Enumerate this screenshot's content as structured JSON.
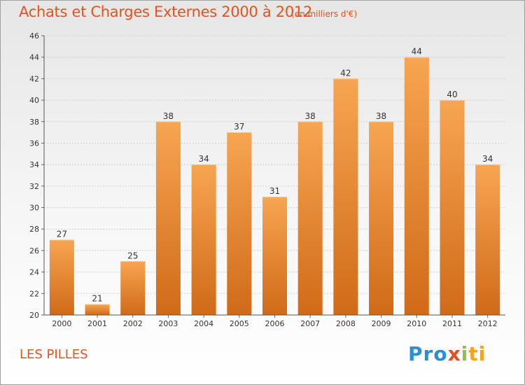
{
  "chart_data": {
    "type": "bar",
    "title": "Achats et Charges Externes 2000 à 2012",
    "subtitle": "(en milliers d'€)",
    "categories": [
      "2000",
      "2001",
      "2002",
      "2003",
      "2004",
      "2005",
      "2006",
      "2007",
      "2008",
      "2009",
      "2010",
      "2011",
      "2012"
    ],
    "values": [
      27,
      21,
      25,
      38,
      34,
      37,
      31,
      38,
      42,
      38,
      44,
      40,
      34
    ],
    "ylim": [
      20,
      46
    ],
    "yticks": [
      20,
      22,
      24,
      26,
      28,
      30,
      32,
      34,
      36,
      38,
      40,
      42,
      44,
      46
    ],
    "xlabel": "",
    "ylabel": "",
    "grid": true,
    "colors": {
      "bar_top": "#f7a552",
      "bar_bottom": "#d06a18",
      "text": "#e8511a"
    }
  },
  "location": "LES PILLES",
  "logo": {
    "text": "Proxiti",
    "parts": [
      "Pro",
      "x",
      "i",
      "ti"
    ]
  }
}
